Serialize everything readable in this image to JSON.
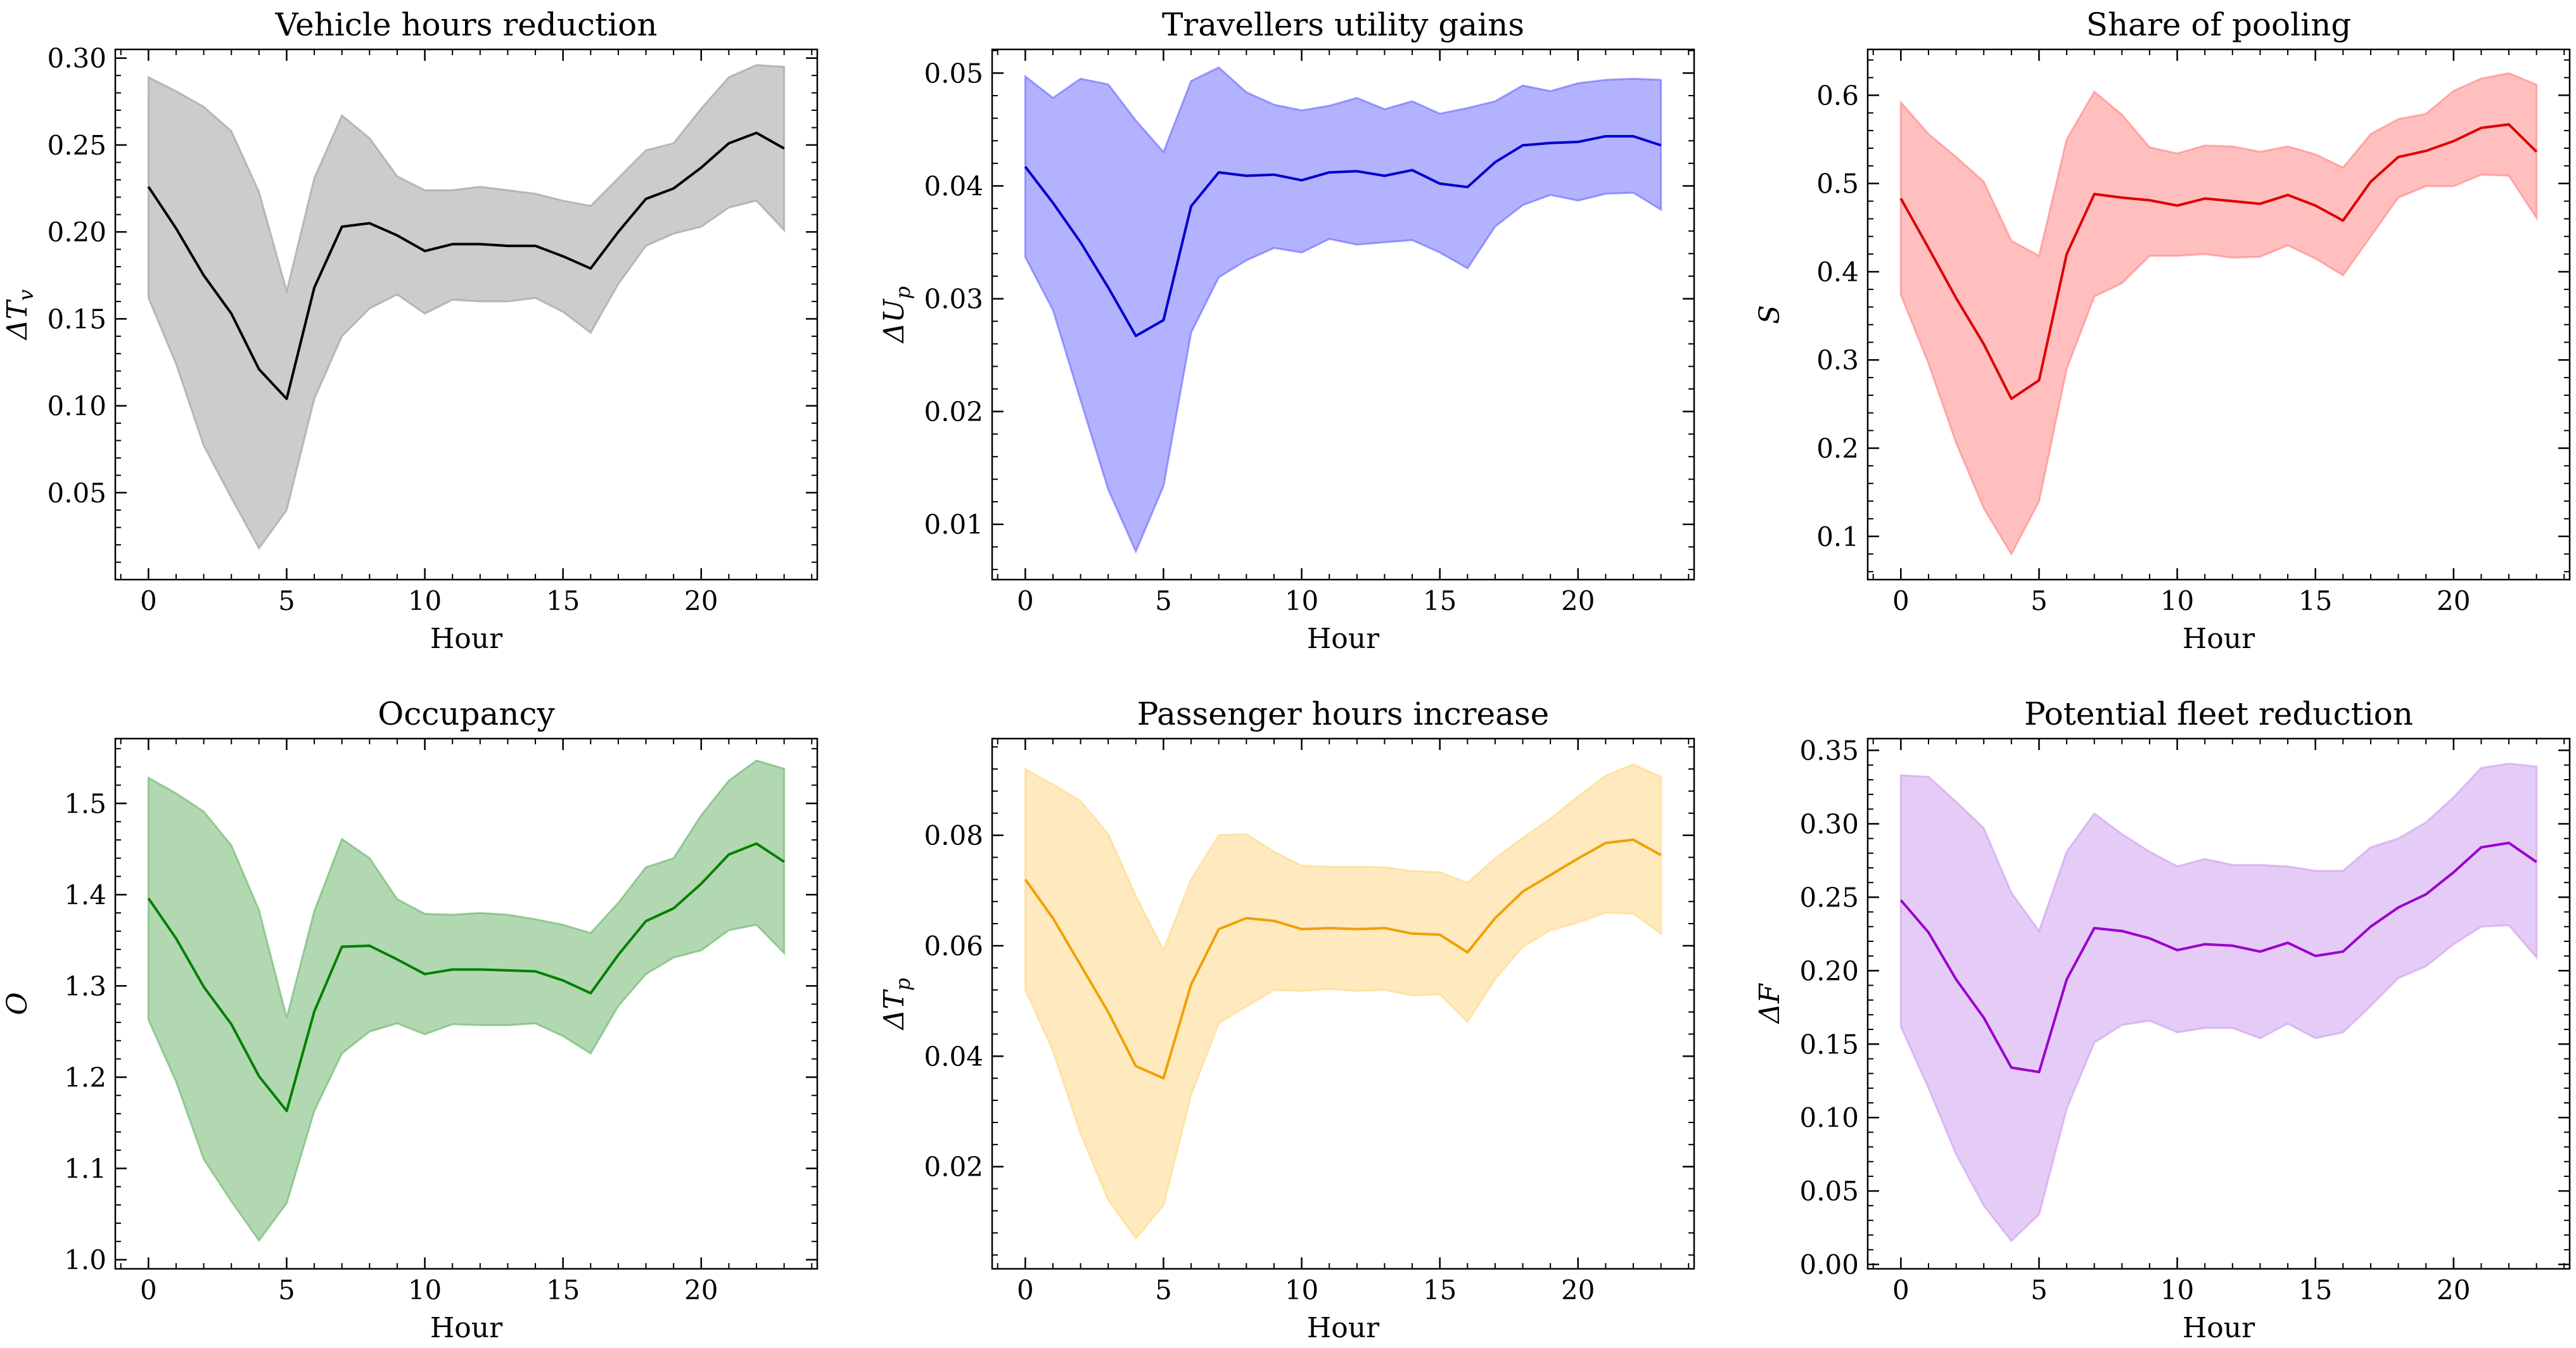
{
  "chart_data": [
    {
      "type": "area",
      "title": "Vehicle hours reduction",
      "xlabel": "Hour",
      "ylabel": "ΔTᵥ",
      "ylabel_main": "ΔT",
      "ylabel_sub": "v",
      "xlim": [
        -1.2,
        24.2
      ],
      "ylim": [
        0.0,
        0.305
      ],
      "xticks": [
        0,
        5,
        10,
        15,
        20
      ],
      "yticks": [
        0.05,
        0.1,
        0.15,
        0.2,
        0.25,
        0.3
      ],
      "ytick_labels": [
        "0.05",
        "0.10",
        "0.15",
        "0.20",
        "0.25",
        "0.30"
      ],
      "line_color": "#000000",
      "band_color": "#999999",
      "x": [
        0,
        1,
        2,
        3,
        4,
        5,
        6,
        7,
        8,
        9,
        10,
        11,
        12,
        13,
        14,
        15,
        16,
        17,
        18,
        19,
        20,
        21,
        22,
        23
      ],
      "mean": [
        0.226,
        0.202,
        0.175,
        0.153,
        0.121,
        0.104,
        0.168,
        0.203,
        0.205,
        0.198,
        0.189,
        0.193,
        0.193,
        0.192,
        0.192,
        0.186,
        0.179,
        0.2,
        0.219,
        0.225,
        0.237,
        0.251,
        0.257,
        0.248
      ],
      "lower": [
        0.162,
        0.124,
        0.077,
        0.047,
        0.018,
        0.04,
        0.104,
        0.14,
        0.156,
        0.164,
        0.153,
        0.161,
        0.16,
        0.16,
        0.162,
        0.154,
        0.142,
        0.17,
        0.192,
        0.199,
        0.203,
        0.214,
        0.218,
        0.201
      ],
      "upper": [
        0.289,
        0.281,
        0.272,
        0.258,
        0.223,
        0.166,
        0.231,
        0.267,
        0.254,
        0.232,
        0.224,
        0.224,
        0.226,
        0.224,
        0.222,
        0.218,
        0.215,
        0.231,
        0.247,
        0.251,
        0.271,
        0.289,
        0.296,
        0.295
      ]
    },
    {
      "type": "area",
      "title": "Travellers utility gains",
      "xlabel": "Hour",
      "ylabel": "ΔUₚ",
      "ylabel_main": "ΔU",
      "ylabel_sub": "p",
      "xlim": [
        -1.2,
        24.2
      ],
      "ylim": [
        0.0051,
        0.0521
      ],
      "xticks": [
        0,
        5,
        10,
        15,
        20
      ],
      "yticks": [
        0.01,
        0.02,
        0.03,
        0.04,
        0.05
      ],
      "ytick_labels": [
        "0.01",
        "0.02",
        "0.03",
        "0.04",
        "0.05"
      ],
      "line_color": "#0000cc",
      "band_color": "#6666ff",
      "x": [
        0,
        1,
        2,
        3,
        4,
        5,
        6,
        7,
        8,
        9,
        10,
        11,
        12,
        13,
        14,
        15,
        16,
        17,
        18,
        19,
        20,
        21,
        22,
        23
      ],
      "mean": [
        0.0417,
        0.0385,
        0.035,
        0.031,
        0.0267,
        0.0281,
        0.0382,
        0.0412,
        0.0409,
        0.041,
        0.0405,
        0.0412,
        0.0413,
        0.0409,
        0.0414,
        0.0402,
        0.0399,
        0.0421,
        0.0436,
        0.0438,
        0.0439,
        0.0444,
        0.0444,
        0.0436
      ],
      "lower": [
        0.0337,
        0.029,
        0.021,
        0.0131,
        0.0076,
        0.0134,
        0.027,
        0.0319,
        0.0334,
        0.0345,
        0.0341,
        0.0353,
        0.0348,
        0.035,
        0.0352,
        0.0341,
        0.0327,
        0.0364,
        0.0383,
        0.0392,
        0.0387,
        0.0393,
        0.0394,
        0.0379
      ],
      "upper": [
        0.0497,
        0.0478,
        0.0495,
        0.049,
        0.0458,
        0.043,
        0.0493,
        0.0505,
        0.0483,
        0.0472,
        0.0467,
        0.0471,
        0.0478,
        0.0468,
        0.0475,
        0.0464,
        0.0469,
        0.0475,
        0.0489,
        0.0484,
        0.0491,
        0.0494,
        0.0495,
        0.0494
      ]
    },
    {
      "type": "area",
      "title": "Share of pooling",
      "xlabel": "Hour",
      "ylabel": "S",
      "ylabel_main": "S",
      "ylabel_sub": "",
      "xlim": [
        -1.2,
        24.2
      ],
      "ylim": [
        0.051,
        0.652
      ],
      "xticks": [
        0,
        5,
        10,
        15,
        20
      ],
      "yticks": [
        0.1,
        0.2,
        0.3,
        0.4,
        0.5,
        0.6
      ],
      "ytick_labels": [
        "0.1",
        "0.2",
        "0.3",
        "0.4",
        "0.5",
        "0.6"
      ],
      "line_color": "#dd0000",
      "band_color": "#ff8080",
      "x": [
        0,
        1,
        2,
        3,
        4,
        5,
        6,
        7,
        8,
        9,
        10,
        11,
        12,
        13,
        14,
        15,
        16,
        17,
        18,
        19,
        20,
        21,
        22,
        23
      ],
      "mean": [
        0.483,
        0.427,
        0.37,
        0.318,
        0.256,
        0.277,
        0.42,
        0.488,
        0.484,
        0.481,
        0.475,
        0.483,
        0.48,
        0.477,
        0.487,
        0.475,
        0.458,
        0.502,
        0.53,
        0.537,
        0.548,
        0.563,
        0.567,
        0.536
      ],
      "lower": [
        0.374,
        0.296,
        0.206,
        0.132,
        0.08,
        0.14,
        0.29,
        0.372,
        0.387,
        0.418,
        0.418,
        0.42,
        0.416,
        0.417,
        0.43,
        0.415,
        0.396,
        0.44,
        0.484,
        0.497,
        0.497,
        0.51,
        0.509,
        0.461
      ],
      "upper": [
        0.592,
        0.556,
        0.53,
        0.502,
        0.435,
        0.418,
        0.55,
        0.604,
        0.578,
        0.541,
        0.534,
        0.543,
        0.542,
        0.536,
        0.542,
        0.533,
        0.518,
        0.556,
        0.573,
        0.579,
        0.605,
        0.619,
        0.625,
        0.612
      ]
    },
    {
      "type": "area",
      "title": "Occupancy",
      "xlabel": "Hour",
      "ylabel": "O",
      "ylabel_main": "O",
      "ylabel_sub": "",
      "xlim": [
        -1.2,
        24.2
      ],
      "ylim": [
        0.99,
        1.571
      ],
      "xticks": [
        0,
        5,
        10,
        15,
        20
      ],
      "yticks": [
        1.0,
        1.1,
        1.2,
        1.3,
        1.4,
        1.5
      ],
      "ytick_labels": [
        "1.0",
        "1.1",
        "1.2",
        "1.3",
        "1.4",
        "1.5"
      ],
      "line_color": "#008000",
      "band_color": "#66b266",
      "x": [
        0,
        1,
        2,
        3,
        4,
        5,
        6,
        7,
        8,
        9,
        10,
        11,
        12,
        13,
        14,
        15,
        16,
        17,
        18,
        19,
        20,
        21,
        22,
        23
      ],
      "mean": [
        1.396,
        1.352,
        1.299,
        1.258,
        1.201,
        1.163,
        1.272,
        1.343,
        1.344,
        1.329,
        1.313,
        1.318,
        1.318,
        1.317,
        1.316,
        1.306,
        1.292,
        1.334,
        1.371,
        1.385,
        1.412,
        1.444,
        1.456,
        1.436
      ],
      "lower": [
        1.263,
        1.195,
        1.11,
        1.064,
        1.021,
        1.062,
        1.163,
        1.226,
        1.25,
        1.259,
        1.247,
        1.258,
        1.257,
        1.257,
        1.259,
        1.245,
        1.226,
        1.278,
        1.313,
        1.331,
        1.339,
        1.361,
        1.367,
        1.336
      ],
      "upper": [
        1.528,
        1.511,
        1.491,
        1.454,
        1.383,
        1.265,
        1.382,
        1.461,
        1.44,
        1.395,
        1.379,
        1.378,
        1.38,
        1.378,
        1.373,
        1.367,
        1.358,
        1.391,
        1.43,
        1.44,
        1.487,
        1.525,
        1.547,
        1.538
      ]
    },
    {
      "type": "area",
      "title": "Passenger hours increase",
      "xlabel": "Hour",
      "ylabel": "ΔTₚ",
      "ylabel_main": "ΔT",
      "ylabel_sub": "p",
      "xlim": [
        -1.2,
        24.2
      ],
      "ylim": [
        0.0015,
        0.0975
      ],
      "xticks": [
        0,
        5,
        10,
        15,
        20
      ],
      "yticks": [
        0.02,
        0.04,
        0.06,
        0.08
      ],
      "ytick_labels": [
        "0.02",
        "0.04",
        "0.06",
        "0.08"
      ],
      "line_color": "#f0a000",
      "band_color": "#ffd580",
      "x": [
        0,
        1,
        2,
        3,
        4,
        5,
        6,
        7,
        8,
        9,
        10,
        11,
        12,
        13,
        14,
        15,
        16,
        17,
        18,
        19,
        20,
        21,
        22,
        23
      ],
      "mean": [
        0.072,
        0.065,
        0.0565,
        0.048,
        0.0382,
        0.036,
        0.053,
        0.063,
        0.065,
        0.0645,
        0.063,
        0.0632,
        0.063,
        0.0632,
        0.0622,
        0.062,
        0.0588,
        0.065,
        0.0698,
        0.0728,
        0.0758,
        0.0786,
        0.0792,
        0.0764
      ],
      "lower": [
        0.052,
        0.041,
        0.026,
        0.014,
        0.007,
        0.013,
        0.033,
        0.046,
        0.049,
        0.052,
        0.0518,
        0.0522,
        0.0518,
        0.052,
        0.051,
        0.0512,
        0.0462,
        0.054,
        0.0598,
        0.0628,
        0.0642,
        0.066,
        0.0658,
        0.0622
      ],
      "upper": [
        0.092,
        0.0892,
        0.0862,
        0.0802,
        0.069,
        0.0592,
        0.072,
        0.08,
        0.0802,
        0.077,
        0.0745,
        0.0743,
        0.0743,
        0.0742,
        0.0735,
        0.0733,
        0.0714,
        0.0758,
        0.0795,
        0.083,
        0.087,
        0.0908,
        0.0928,
        0.0906
      ]
    },
    {
      "type": "area",
      "title": "Potential fleet reduction",
      "xlabel": "Hour",
      "ylabel": "ΔF",
      "ylabel_main": "ΔF",
      "ylabel_sub": "",
      "xlim": [
        -1.2,
        24.2
      ],
      "ylim": [
        -0.003,
        0.358
      ],
      "xticks": [
        0,
        5,
        10,
        15,
        20
      ],
      "yticks": [
        0.0,
        0.05,
        0.1,
        0.15,
        0.2,
        0.25,
        0.3,
        0.35
      ],
      "ytick_labels": [
        "0.00",
        "0.05",
        "0.10",
        "0.15",
        "0.20",
        "0.25",
        "0.30",
        "0.35"
      ],
      "line_color": "#9900cc",
      "band_color": "#cc99ee",
      "x": [
        0,
        1,
        2,
        3,
        4,
        5,
        6,
        7,
        8,
        9,
        10,
        11,
        12,
        13,
        14,
        15,
        16,
        17,
        18,
        19,
        20,
        21,
        22,
        23
      ],
      "mean": [
        0.248,
        0.226,
        0.194,
        0.168,
        0.134,
        0.131,
        0.194,
        0.229,
        0.227,
        0.222,
        0.214,
        0.218,
        0.217,
        0.213,
        0.219,
        0.21,
        0.213,
        0.23,
        0.243,
        0.252,
        0.267,
        0.284,
        0.287,
        0.274
      ],
      "lower": [
        0.162,
        0.12,
        0.075,
        0.04,
        0.016,
        0.034,
        0.106,
        0.151,
        0.163,
        0.166,
        0.158,
        0.161,
        0.161,
        0.154,
        0.164,
        0.154,
        0.158,
        0.176,
        0.195,
        0.203,
        0.218,
        0.23,
        0.231,
        0.209
      ],
      "upper": [
        0.333,
        0.332,
        0.315,
        0.297,
        0.253,
        0.227,
        0.281,
        0.307,
        0.293,
        0.281,
        0.271,
        0.276,
        0.272,
        0.272,
        0.271,
        0.268,
        0.268,
        0.284,
        0.29,
        0.301,
        0.318,
        0.338,
        0.341,
        0.339
      ]
    }
  ]
}
